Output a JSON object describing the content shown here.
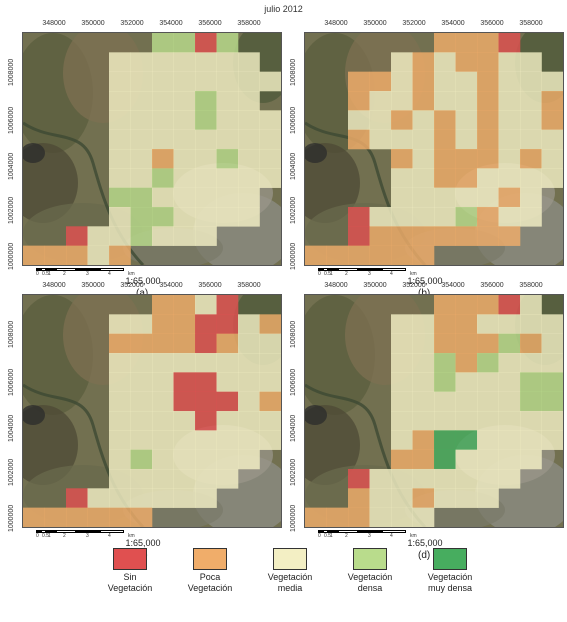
{
  "title": "julio 2012",
  "colors": {
    "sin": "#e05050",
    "poca": "#f0ad6a",
    "media": "#f3efc4",
    "densa": "#b9dc8c",
    "muy": "#47ad5f"
  },
  "x_ticks": [
    "348000",
    "350000",
    "352000",
    "354000",
    "356000",
    "358000"
  ],
  "y_ticks": [
    "1008000",
    "1006000",
    "1004000",
    "1002000",
    "1000000"
  ],
  "scale_labels": [
    "0",
    "0.5",
    "1",
    "2",
    "3",
    "4",
    "km"
  ],
  "scale_ratio": "1:65,000",
  "panels": [
    {
      "letter": "(a)",
      "grid": [
        "......ddsd.",
        "....mmmmmmm.",
        "....mmmmmmmm",
        "....mmmmdmm.",
        "....mmmmdmmm",
        "....mmmmmmmm",
        "....mmpmmdmm",
        "....mmdmmmmm",
        "....ddmmmmm.",
        "....mddmmmm.",
        "..smmdmmm...",
        "pppmp......."
      ]
    },
    {
      "letter": "(b)",
      "grid": [
        "......ppps.",
        "....mpmppmm.",
        "..ppmpmmpmmm",
        "..pmmpmmpmmp",
        "..mmpmpmpmmp",
        "..pmmmpmpmmm",
        "....pmpppmpm",
        "....mmppmmmm",
        "....mmmmmpm.",
        "..smmmmdpmm.",
        "..sppppppp..",
        "pppppp......"
      ]
    },
    {
      "letter": "(c)",
      "grid": [
        "......ppms.",
        "....mmppssmp",
        "....ppppspmm",
        "....mmmmmmmm",
        "....mmmssmmm",
        "....mmmsssmp",
        "....mmmmsmmm",
        "....mmmmmmmm",
        "....mdmmmmm.",
        "....mmmmmm..",
        "..smmmmmm...",
        "pppppp......"
      ]
    },
    {
      "letter": "(d)",
      "grid": [
        "......pppsm.",
        "....mmppmmmm",
        "....mmpppdpm",
        "....mmdpdmmm",
        "....mmdmmmdd",
        "....mmmmmmdd",
        "....mmmmmmmm",
        "....mpxxmmmm",
        "....ppxmmmm.",
        "..smmmmmmm..",
        "..pmmpmmm...",
        "pppmmm......"
      ]
    }
  ],
  "legend": [
    {
      "line1": "Sin",
      "line2": "Vegetación",
      "color_key": "sin"
    },
    {
      "line1": "Poca",
      "line2": "Vegetación",
      "color_key": "poca"
    },
    {
      "line1": "Vegetación",
      "line2": "media",
      "color_key": "media"
    },
    {
      "line1": "Vegetación",
      "line2": "densa",
      "color_key": "densa"
    },
    {
      "line1": "Vegetación",
      "line2": "muy densa",
      "color_key": "muy"
    }
  ]
}
